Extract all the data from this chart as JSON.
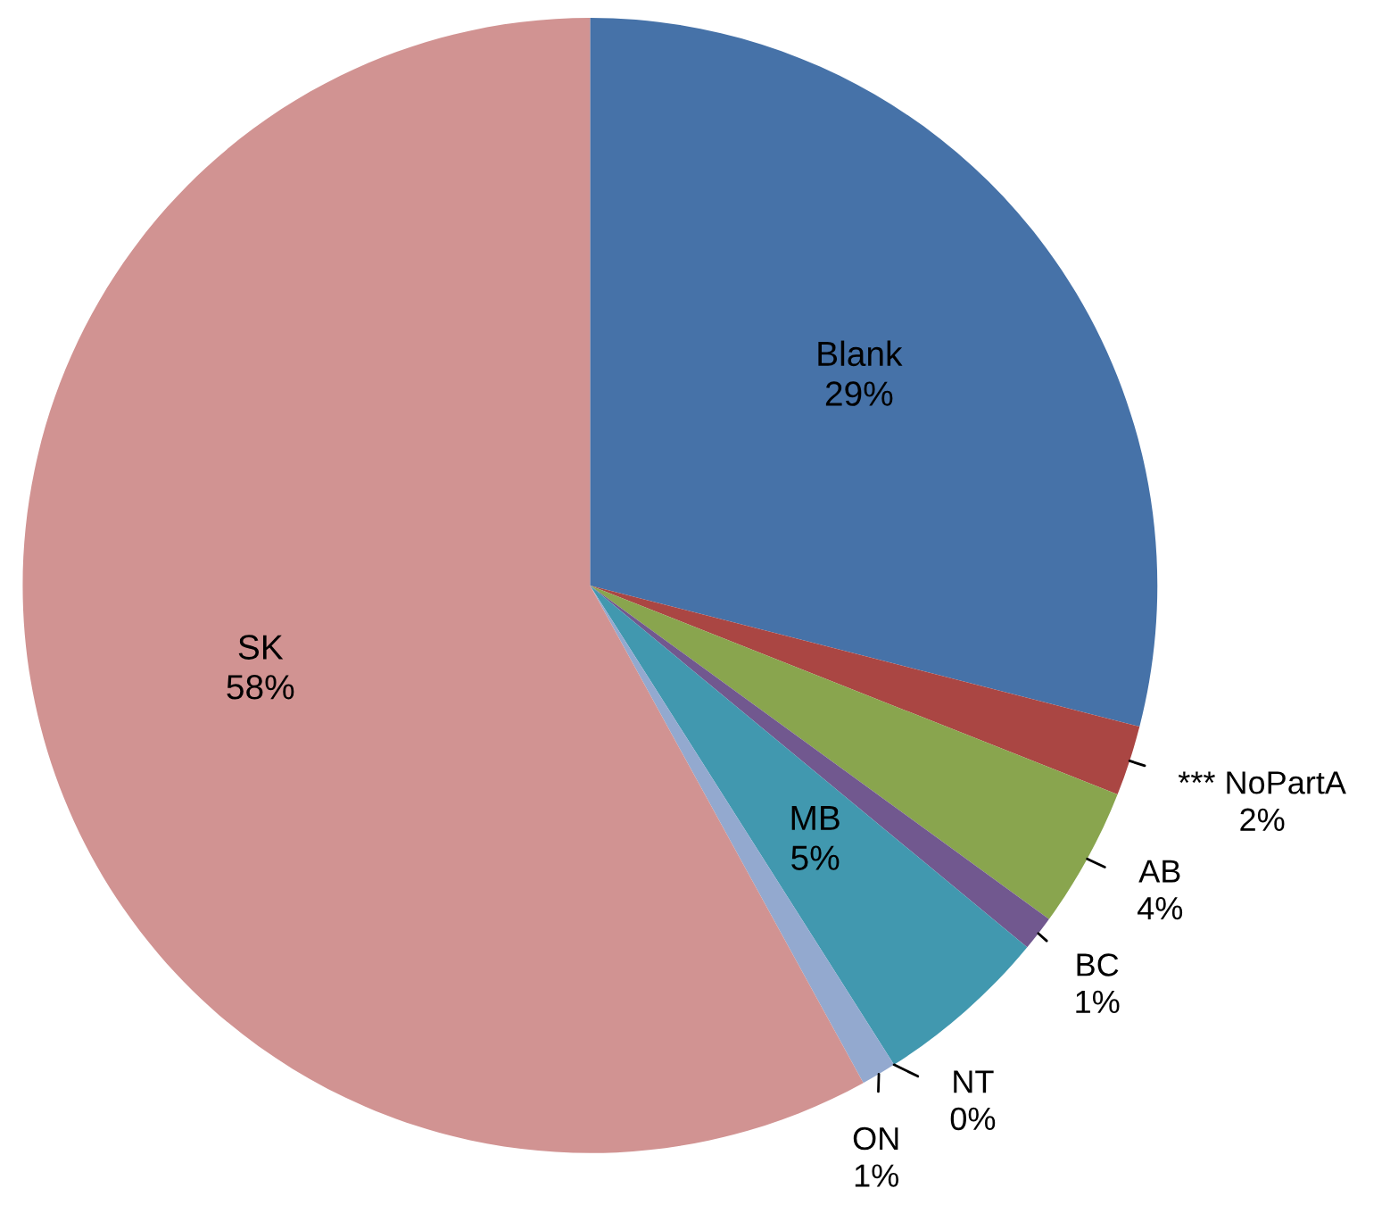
{
  "chart_data": {
    "type": "pie",
    "categories": [
      "Blank",
      "*** NoPartA",
      "AB",
      "BC",
      "MB",
      "NT",
      "ON",
      "SK"
    ],
    "values": [
      29,
      2,
      4,
      1,
      5,
      0,
      1,
      58
    ],
    "value_labels": [
      "29%",
      "2%",
      "4%",
      "1%",
      "5%",
      "0%",
      "1%",
      "58%"
    ],
    "colors": [
      "#4672a8",
      "#aa4643",
      "#89a54e",
      "#71588f",
      "#4198af",
      "#db843d",
      "#93a9cf",
      "#d19392"
    ]
  }
}
